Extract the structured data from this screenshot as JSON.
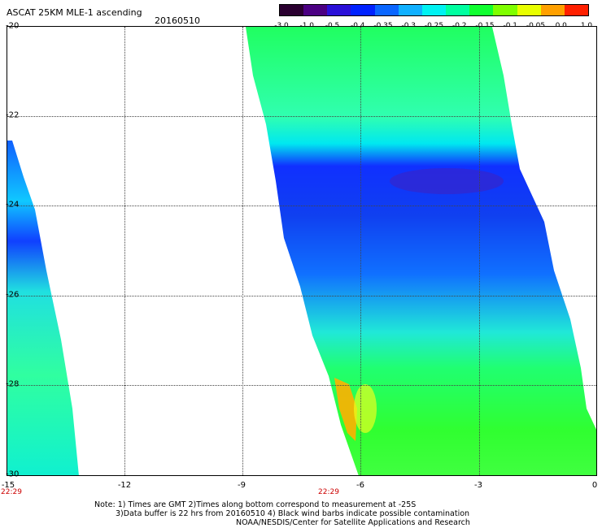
{
  "title": "ASCAT 25KM MLE-1 ascending",
  "date": "20160510",
  "colorbar": {
    "ticks": [
      "-3.0",
      "-1.0",
      "-0.5",
      "-0.4",
      "-0.35",
      "-0.3",
      "-0.25",
      "-0.2",
      "-0.15",
      "-0.1",
      "-0.05",
      "0.0",
      "1.0"
    ],
    "colors": [
      "#2a0030",
      "#4b0082",
      "#2a10d8",
      "#0022ff",
      "#0a66ff",
      "#10b0ff",
      "#00f2f2",
      "#00ffa0",
      "#10ff30",
      "#7fff00",
      "#e8ff00",
      "#ffa000",
      "#ff2000"
    ]
  },
  "y_axis": {
    "labels": [
      "-20",
      "-22",
      "-24",
      "-26",
      "-28",
      "-30"
    ]
  },
  "x_axis": {
    "labels": [
      "-15",
      "-12",
      "-9",
      "-6",
      "-3",
      "0"
    ]
  },
  "times": [
    "22:29",
    "22:29"
  ],
  "notes": [
    "Note: 1) Times are GMT 2)Times along bottom correspond to measurement at -25S",
    "3)Data buffer is 22 hrs from 20160510 4) Black wind barbs indicate possible contamination",
    "NOAA/NESDIS/Center for Satellite Applications and Research"
  ]
}
